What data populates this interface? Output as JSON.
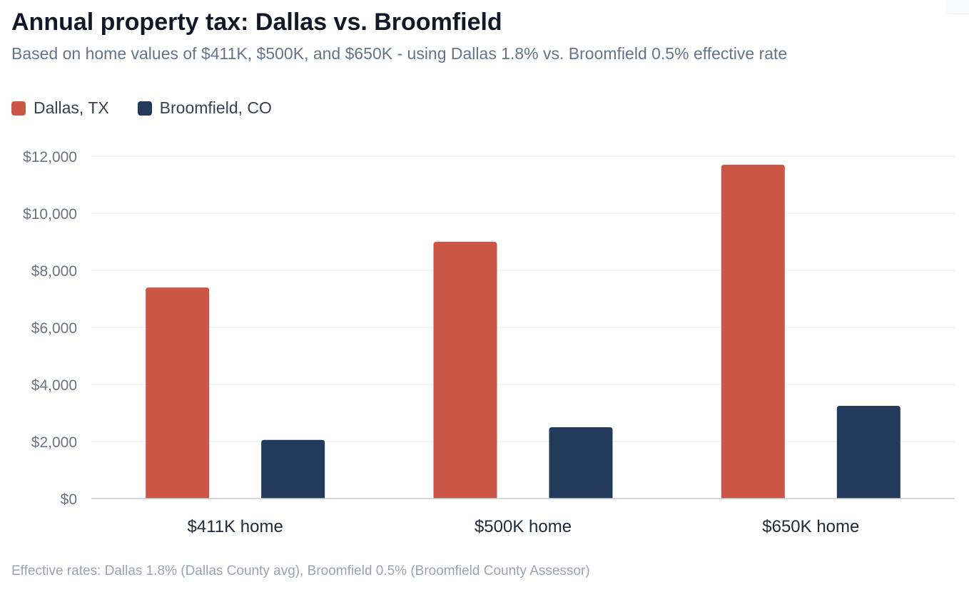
{
  "title": "Annual property tax: Dallas vs. Broomfield",
  "subtitle": "Based on home values of $411K, $500K, and $650K - using Dallas 1.8% vs. Broomfield 0.5% effective rate",
  "footnote": "Effective rates: Dallas 1.8% (Dallas County avg), Broomfield 0.5% (Broomfield County Assessor)",
  "colors": {
    "dallas": "#cb5646",
    "broomfield": "#243a5c",
    "grid": "#eef0f3",
    "axis": "#c8ccd2",
    "tick_label": "#6b7280",
    "category_label": "#1f2937"
  },
  "legend": {
    "items": [
      {
        "label": "Dallas, TX",
        "color": "#cb5646"
      },
      {
        "label": "Broomfield, CO",
        "color": "#243a5c"
      }
    ],
    "placement": "top-left"
  },
  "chart_data": {
    "type": "bar",
    "categories": [
      "$411K home",
      "$500K home",
      "$650K home"
    ],
    "series": [
      {
        "name": "Dallas, TX",
        "values": [
          7398,
          9000,
          11700
        ]
      },
      {
        "name": "Broomfield, CO",
        "values": [
          2055,
          2500,
          3250
        ]
      }
    ],
    "ylim": [
      0,
      12000
    ],
    "yticks": [
      0,
      2000,
      4000,
      6000,
      8000,
      10000,
      12000
    ],
    "ytick_labels": [
      "$0",
      "$2,000",
      "$4,000",
      "$6,000",
      "$8,000",
      "$10,000",
      "$12,000"
    ],
    "grid": true,
    "legend_placement": "top-left"
  }
}
